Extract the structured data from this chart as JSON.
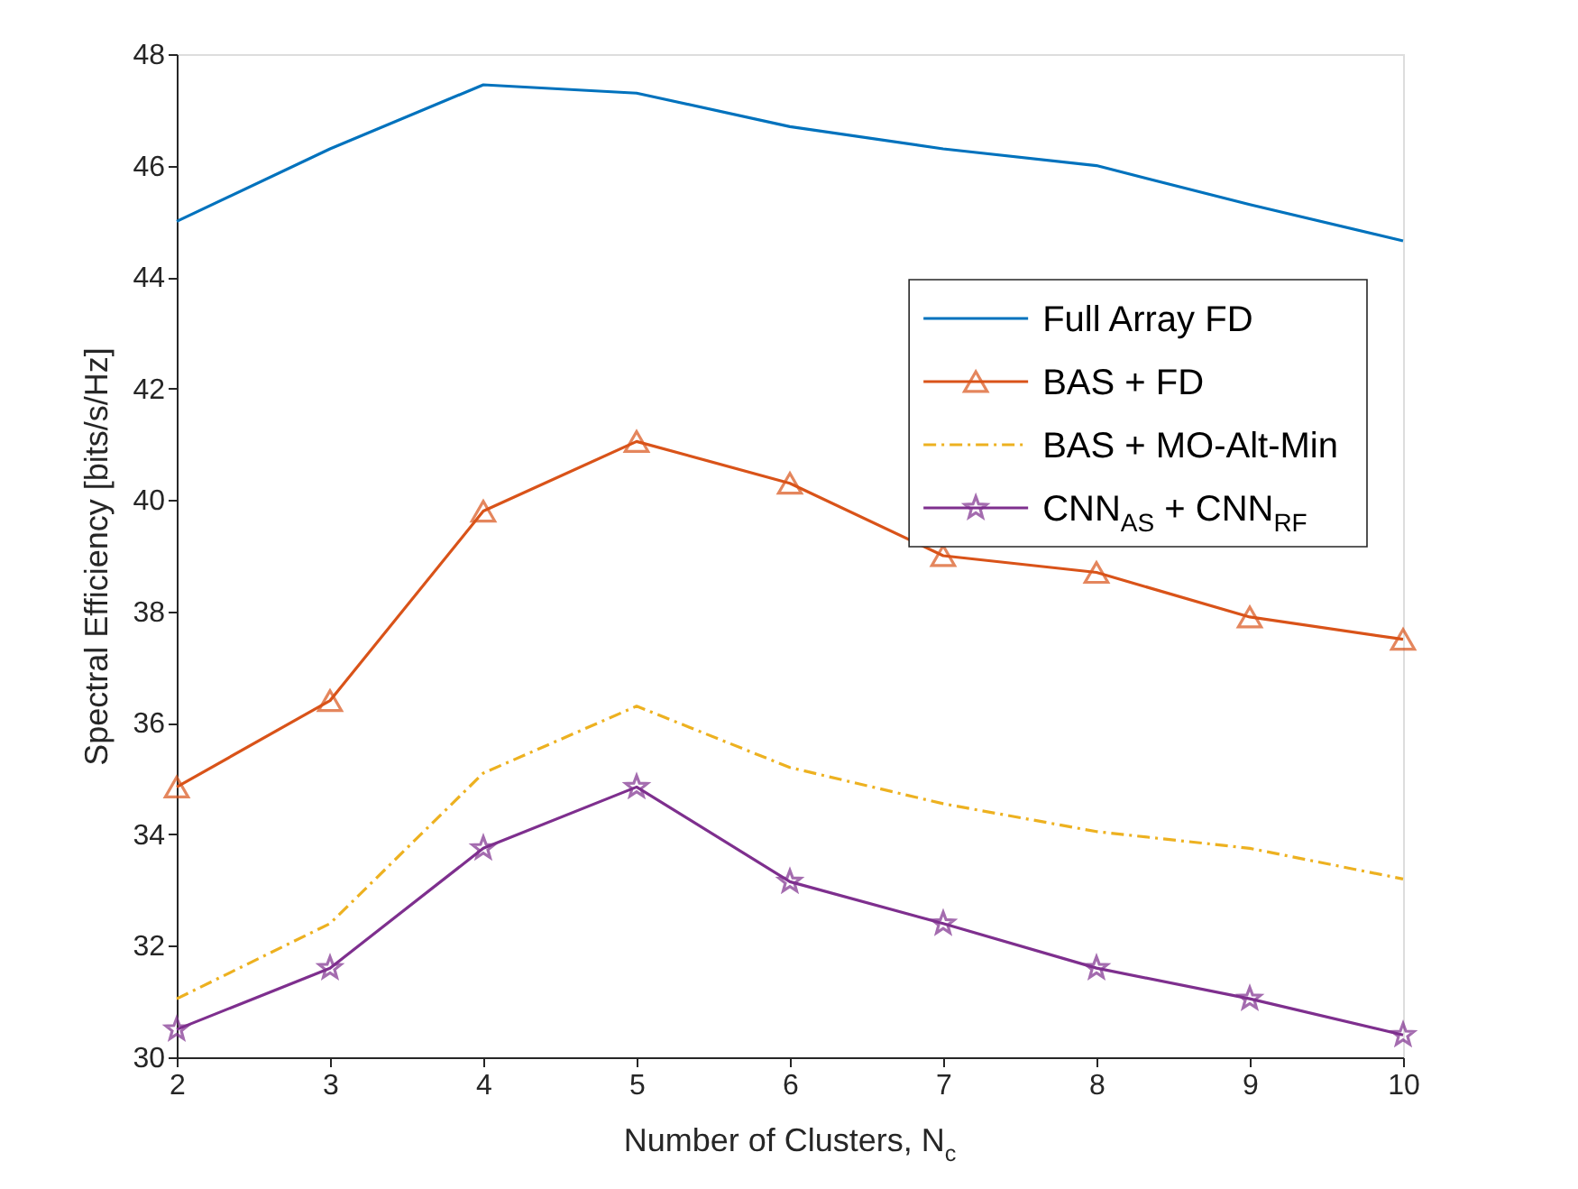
{
  "chart_data": {
    "type": "line",
    "xlabel": "Number of Clusters, N$_{c}$",
    "ylabel": "Spectral Efficiency [bits/s/Hz]",
    "x": [
      2,
      3,
      4,
      5,
      6,
      7,
      8,
      9,
      10
    ],
    "xlim": [
      2,
      10
    ],
    "xticks": [
      2,
      3,
      4,
      5,
      6,
      7,
      8,
      9,
      10
    ],
    "ylim": [
      30,
      48
    ],
    "yticks": [
      30,
      32,
      34,
      36,
      38,
      40,
      42,
      44,
      46,
      48
    ],
    "grid": false,
    "legend": "top right",
    "series": [
      {
        "name": "Full Array FD",
        "color": "#0072bd",
        "marker": "none",
        "line_style": "solid",
        "values": [
          45.0,
          46.3,
          47.45,
          47.3,
          46.7,
          46.3,
          46.0,
          45.3,
          44.65
        ]
      },
      {
        "name": "BAS + FD",
        "color": "#d95319",
        "marker": "triangle",
        "line_style": "solid",
        "values": [
          34.85,
          36.4,
          39.8,
          41.05,
          40.3,
          39.0,
          38.7,
          37.9,
          37.5
        ]
      },
      {
        "name": "BAS + MO-Alt-Min",
        "color": "#edb120",
        "marker": "none",
        "line_style": "dashed",
        "values": [
          31.05,
          32.4,
          35.1,
          36.3,
          35.2,
          34.55,
          34.05,
          33.75,
          33.2
        ]
      },
      {
        "name": "CNN$_{AS}$ + CNN$_{RF}$",
        "color": "#7e2f8e",
        "marker": "star",
        "line_style": "solid",
        "values": [
          30.5,
          31.6,
          33.75,
          34.85,
          33.15,
          32.4,
          31.6,
          31.05,
          30.4
        ]
      }
    ]
  }
}
